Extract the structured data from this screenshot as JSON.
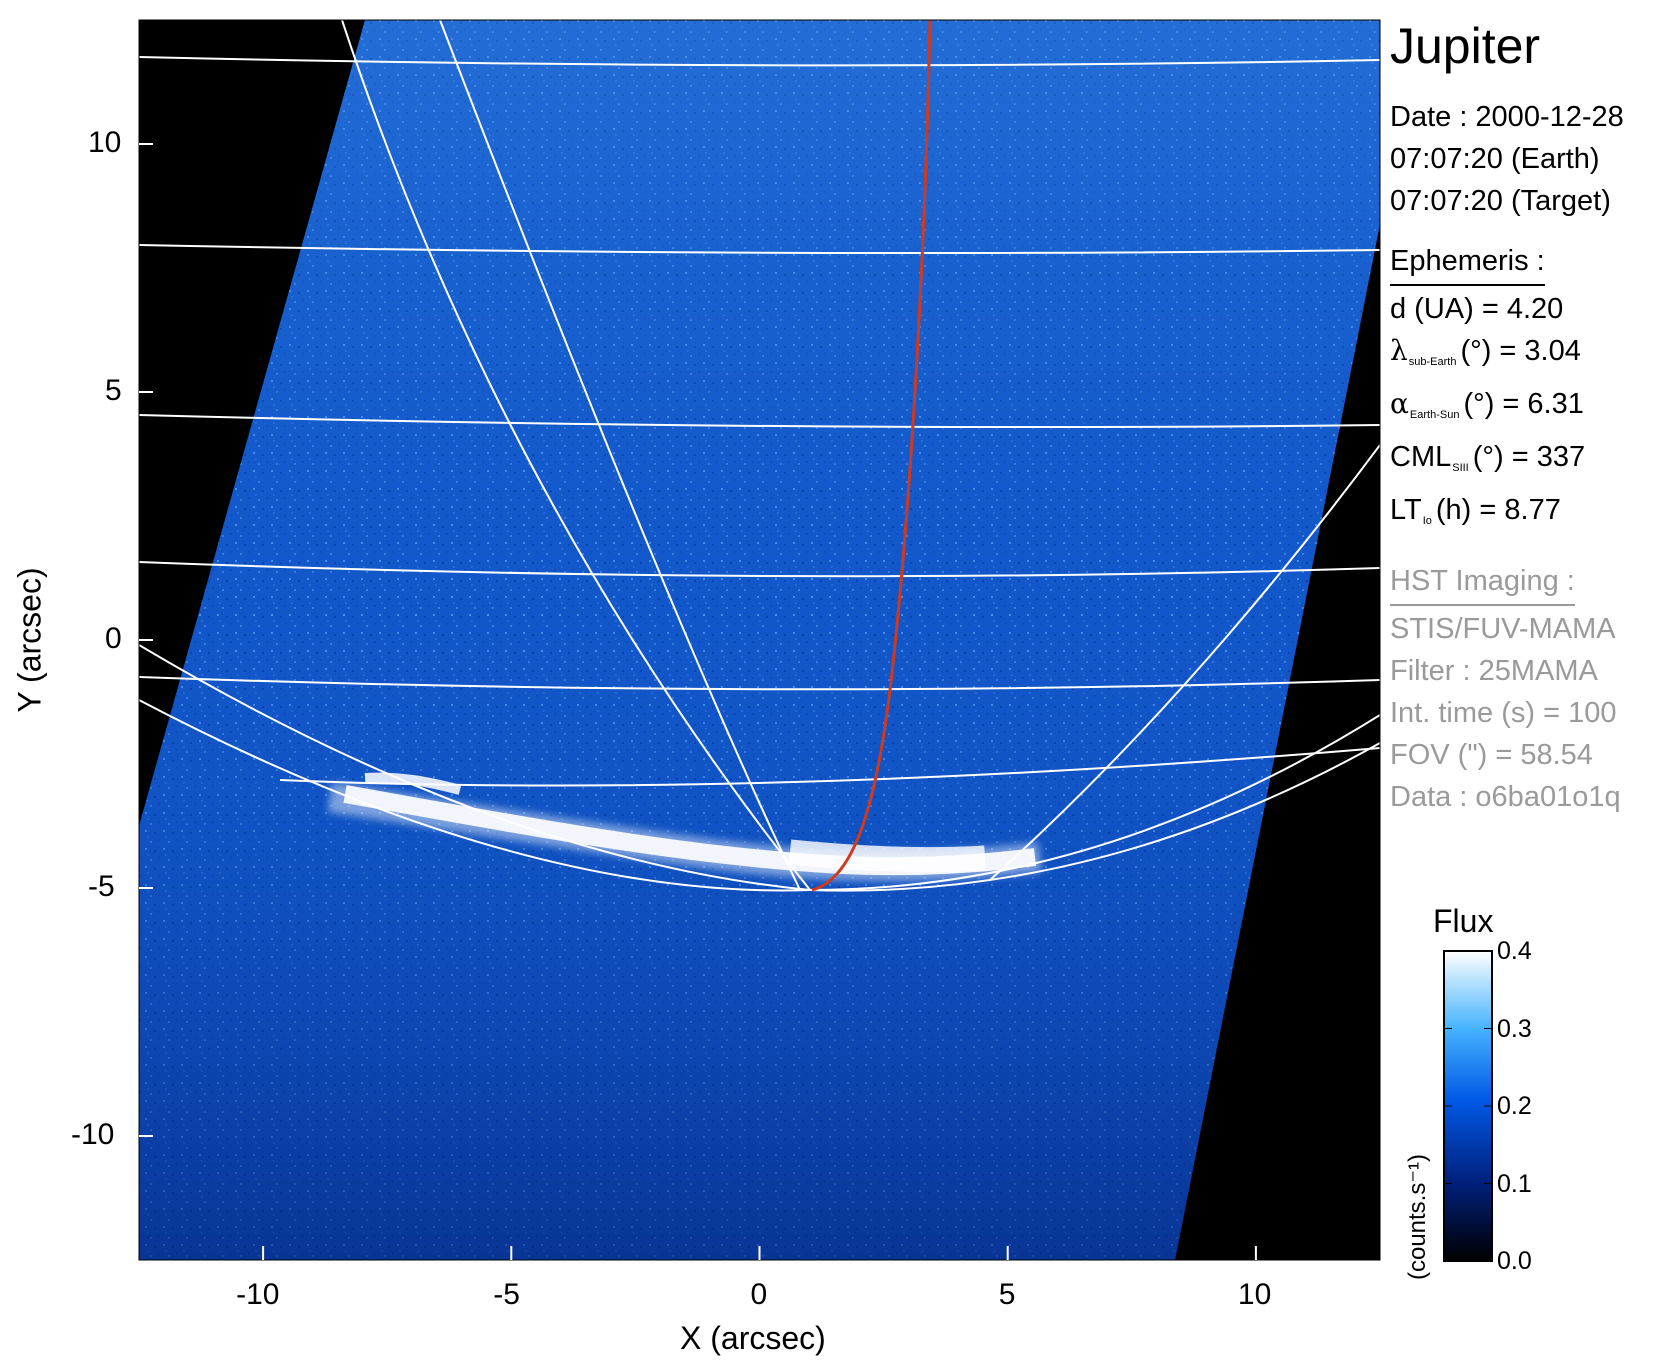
{
  "title": "Jupiter",
  "date": {
    "date_line": "Date : 2000-12-28",
    "earth_line": "07:07:20 (Earth)",
    "target_line": "07:07:20 (Target)"
  },
  "ephemeris": {
    "title": "Ephemeris :",
    "d_line": "d (UA)    = 4.20",
    "lambda_symbol": "λ",
    "lambda_sub": "sub-Earth",
    "lambda_value": "(°) = 3.04",
    "alpha_symbol": "α",
    "alpha_sub": "Earth-Sun",
    "alpha_value": "(°) = 6.31",
    "cml_main": "CML",
    "cml_sub": "SIII",
    "cml_value": "(°) = 337",
    "lt_main": "LT",
    "lt_sub": "Io",
    "lt_value": "(h) = 8.77"
  },
  "hst": {
    "title": "HST Imaging :",
    "instrument": "STIS/FUV-MAMA",
    "filter": "Filter : 25MAMA",
    "int_time": "Int. time (s) = 100",
    "fov": "FOV (\") = 58.54",
    "data_id": "Data : o6ba01o1q"
  },
  "axes": {
    "xlabel": "X (arcsec)",
    "ylabel": "Y (arcsec)",
    "xlim": [
      -12.5,
      12.5
    ],
    "ylim": [
      -12.5,
      12.5
    ],
    "xticks": [
      -10,
      -5,
      0,
      5,
      10
    ],
    "yticks": [
      10,
      5,
      0,
      -5,
      -10
    ],
    "xticks_text": [
      "-10",
      "-5",
      "0",
      "5",
      "10"
    ],
    "yticks_text": [
      "10",
      "5",
      "0",
      "-5",
      "-10"
    ]
  },
  "colorbar": {
    "title": "Flux",
    "unit": "(counts.s⁻¹)",
    "ticks": [
      0.4,
      0.3,
      0.2,
      0.1,
      0.0
    ],
    "ticks_text": [
      "0.4",
      "0.3",
      "0.2",
      "0.1",
      "0.0"
    ],
    "colors": [
      "#000000",
      "#001f7a",
      "#0059e6",
      "#46b3ff",
      "#ffffff"
    ]
  },
  "colors": {
    "background": "#000000",
    "image_base": "#1356c8",
    "grid": "#ffffff",
    "io_footprint": "#d0391d",
    "aurora": "#ffffff"
  }
}
